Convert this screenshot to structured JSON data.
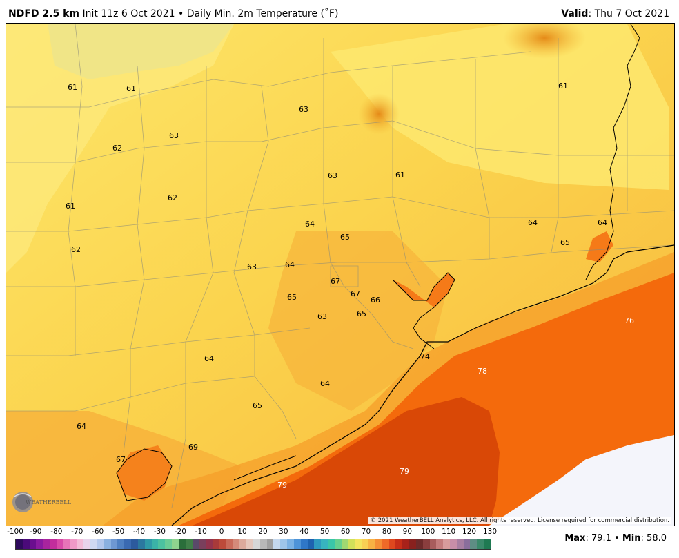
{
  "header": {
    "model": "NDFD 2.5 km",
    "init": "Init 11z 6 Oct 2021",
    "bullet": "•",
    "product": "Daily Min. 2m Temperature (˚F)",
    "valid_label": "Valid",
    "valid_value": ": Thu 7 Oct 2021"
  },
  "map": {
    "labels": [
      {
        "text": "61",
        "color": "#000000"
      },
      {
        "text": "61",
        "color": "#000000"
      },
      {
        "text": "63",
        "color": "#000000"
      },
      {
        "text": "61",
        "color": "#000000"
      },
      {
        "text": "62",
        "color": "#000000"
      },
      {
        "text": "63",
        "color": "#000000"
      },
      {
        "text": "63",
        "color": "#000000"
      },
      {
        "text": "61",
        "color": "#000000"
      },
      {
        "text": "61",
        "color": "#000000"
      },
      {
        "text": "62",
        "color": "#000000"
      },
      {
        "text": "64",
        "color": "#000000"
      },
      {
        "text": "65",
        "color": "#000000"
      },
      {
        "text": "64",
        "color": "#000000"
      },
      {
        "text": "64",
        "color": "#000000"
      },
      {
        "text": "62",
        "color": "#000000"
      },
      {
        "text": "65",
        "color": "#000000"
      },
      {
        "text": "63",
        "color": "#000000"
      },
      {
        "text": "64",
        "color": "#000000"
      },
      {
        "text": "67",
        "color": "#000000"
      },
      {
        "text": "67",
        "color": "#000000"
      },
      {
        "text": "66",
        "color": "#000000"
      },
      {
        "text": "65",
        "color": "#000000"
      },
      {
        "text": "63",
        "color": "#000000"
      },
      {
        "text": "65",
        "color": "#000000"
      },
      {
        "text": "76",
        "color": "#ffffff"
      },
      {
        "text": "74",
        "color": "#000000"
      },
      {
        "text": "64",
        "color": "#000000"
      },
      {
        "text": "78",
        "color": "#ffffff"
      },
      {
        "text": "64",
        "color": "#000000"
      },
      {
        "text": "65",
        "color": "#000000"
      },
      {
        "text": "64",
        "color": "#000000"
      },
      {
        "text": "69",
        "color": "#000000"
      },
      {
        "text": "67",
        "color": "#000000"
      },
      {
        "text": "79",
        "color": "#ffffff"
      },
      {
        "text": "79",
        "color": "#ffffff"
      }
    ],
    "copyright": "© 2021 WeatherBELL Analytics, LLC. All rights reserved. License required for commercial distribution.",
    "logo_text": "WEATHERBELL"
  },
  "scale": {
    "ticks": [
      "-100",
      "-90",
      "-80",
      "-70",
      "-60",
      "-50",
      "-40",
      "-30",
      "-20",
      "-10",
      "0",
      "10",
      "20",
      "30",
      "40",
      "50",
      "60",
      "70",
      "80",
      "90",
      "100",
      "110",
      "120",
      "130"
    ],
    "colors": [
      "#2e0a5c",
      "#4b0a7a",
      "#6a0e8f",
      "#8a1aa0",
      "#a8249e",
      "#c22d9c",
      "#d84aa8",
      "#e774b8",
      "#f09ac8",
      "#f3bcd8",
      "#e8d4ec",
      "#cfd9f2",
      "#b3c8ec",
      "#8ab1e0",
      "#6e98d2",
      "#4f80c2",
      "#3a6ab2",
      "#2c5a9e",
      "#2b78a0",
      "#2f9aa8",
      "#3ab3a8",
      "#4cc2a0",
      "#6acc96",
      "#8fd48e",
      "#2a6e3a",
      "#3f7f48",
      "#5a4a6a",
      "#7a3f5c",
      "#93334d",
      "#a83a3a",
      "#bd4a3a",
      "#c96a5a",
      "#d48a7a",
      "#dcaa9c",
      "#e5c7bc",
      "#d7d7d7",
      "#b8b8b8",
      "#a0a0a0",
      "#c4d8ee",
      "#9ec6ea",
      "#7ab2e4",
      "#4e94d8",
      "#2f77c8",
      "#1e62b0",
      "#2e9ac0",
      "#37b4c0",
      "#3ac6a8",
      "#66d08e",
      "#a0d872",
      "#d2e05a",
      "#f3e45e",
      "#f8d054",
      "#f8b244",
      "#f58f36",
      "#ee6a28",
      "#e0481e",
      "#c82e18",
      "#a8221a",
      "#88211e",
      "#6d2a2a",
      "#8a3e3e",
      "#a85c5c",
      "#c47c7c",
      "#d89c9c",
      "#c88ea8",
      "#a87ea2",
      "#8a6e9c",
      "#5e8e84",
      "#3a8a6a",
      "#1f7a52"
    ],
    "max_label": "Max",
    "max_value": ": 79.1",
    "bullet": "•",
    "min_label": "Min",
    "min_value": ": 58.0"
  }
}
